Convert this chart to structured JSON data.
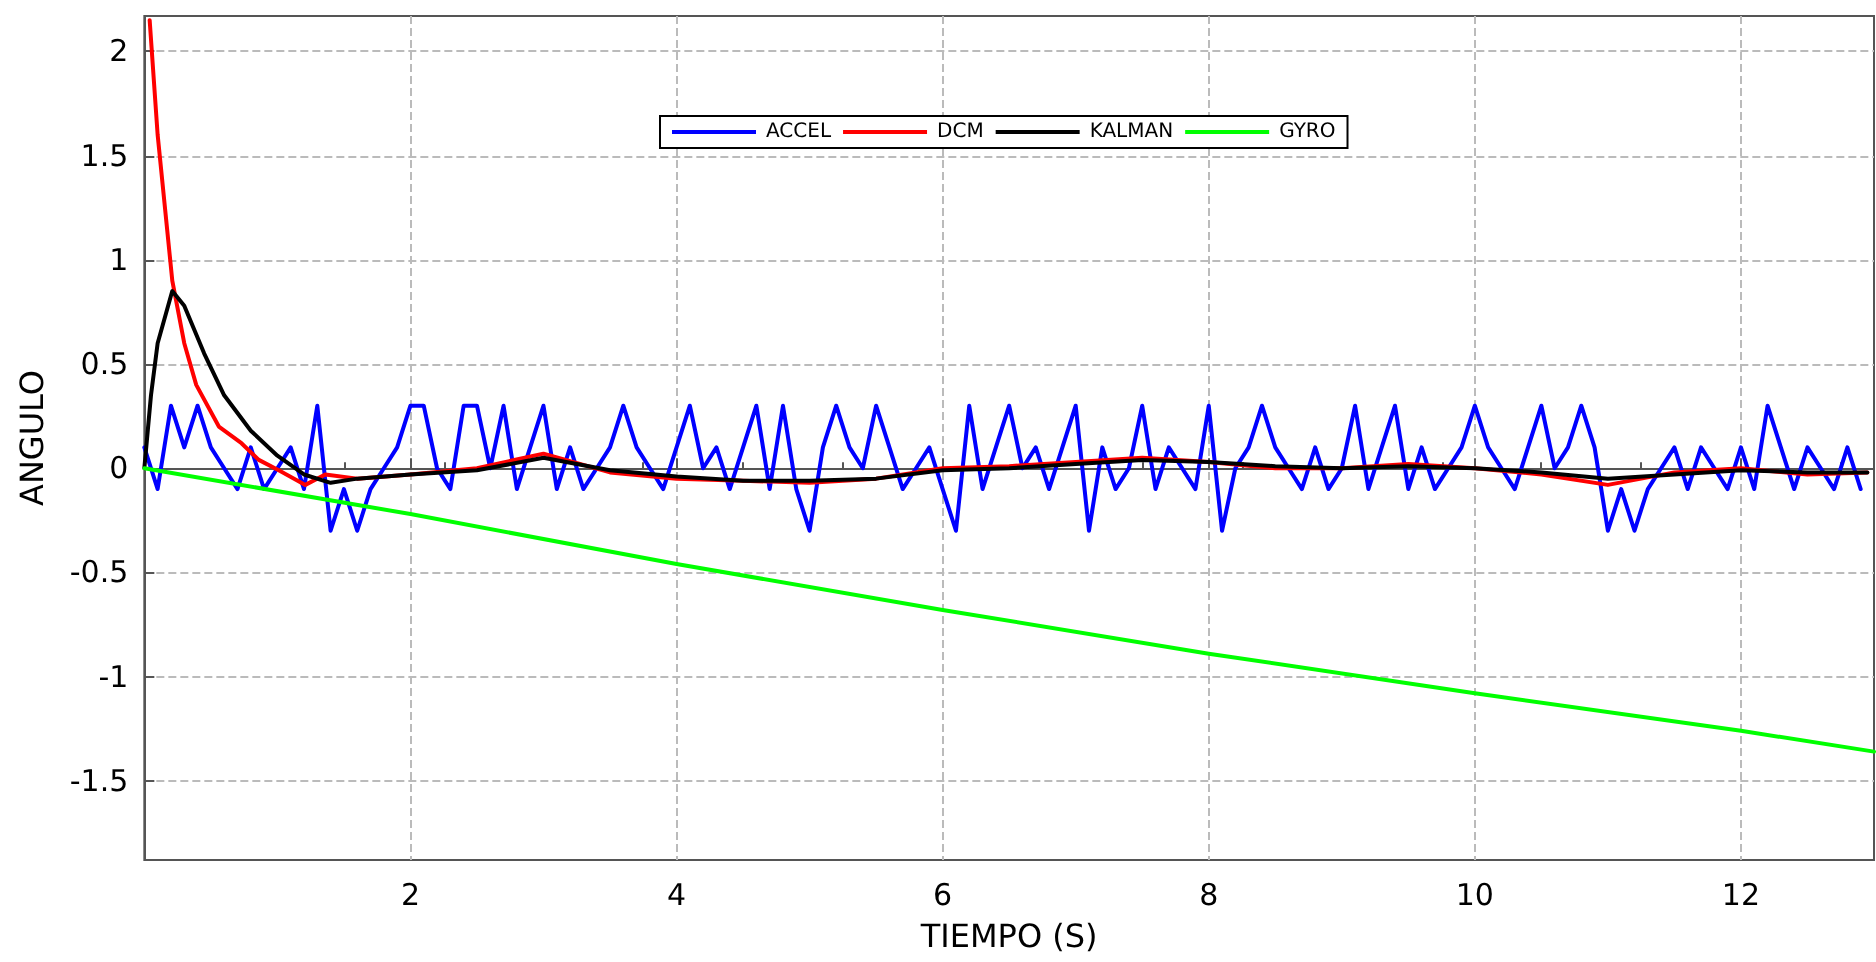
{
  "chart_data": {
    "type": "line",
    "xlabel": "TIEMPO (S)",
    "ylabel": "ANGULO",
    "xlim": [
      0,
      13
    ],
    "ylim": [
      -1.88,
      2.17
    ],
    "xticks": [
      2,
      4,
      6,
      8,
      10,
      12
    ],
    "yticks": [
      -1.5,
      -1,
      -0.5,
      0,
      0.5,
      1,
      1.5,
      2
    ],
    "grid": true,
    "legend": "top",
    "marker": "none",
    "line_style": "solid",
    "series": [
      {
        "name": "ACCEL",
        "color": "#0000ff",
        "x": [
          0,
          0.1,
          0.2,
          0.3,
          0.4,
          0.5,
          0.6,
          0.7,
          0.8,
          0.9,
          1,
          1.1,
          1.2,
          1.3,
          1.4,
          1.5,
          1.6,
          1.7,
          1.8,
          1.9,
          2,
          2.1,
          2.2,
          2.3,
          2.4,
          2.5,
          2.6,
          2.7,
          2.8,
          2.9,
          3,
          3.1,
          3.2,
          3.3,
          3.4,
          3.5,
          3.6,
          3.7,
          3.8,
          3.9,
          4,
          4.1,
          4.2,
          4.3,
          4.4,
          4.5,
          4.6,
          4.7,
          4.8,
          4.9,
          5,
          5.1,
          5.2,
          5.3,
          5.4,
          5.5,
          5.6,
          5.7,
          5.8,
          5.9,
          6,
          6.1,
          6.2,
          6.3,
          6.4,
          6.5,
          6.6,
          6.7,
          6.8,
          6.9,
          7,
          7.1,
          7.2,
          7.3,
          7.4,
          7.5,
          7.6,
          7.7,
          7.8,
          7.9,
          8,
          8.1,
          8.2,
          8.3,
          8.4,
          8.5,
          8.6,
          8.7,
          8.8,
          8.9,
          9,
          9.1,
          9.2,
          9.3,
          9.4,
          9.5,
          9.6,
          9.7,
          9.8,
          9.9,
          10,
          10.1,
          10.2,
          10.3,
          10.4,
          10.5,
          10.6,
          10.7,
          10.8,
          10.9,
          11,
          11.1,
          11.2,
          11.3,
          11.4,
          11.5,
          11.6,
          11.7,
          11.8,
          11.9,
          12,
          12.1,
          12.2,
          12.3,
          12.4,
          12.5,
          12.6,
          12.7,
          12.8,
          12.9
        ],
        "values": [
          0.1,
          -0.1,
          0.3,
          0.1,
          0.3,
          0.1,
          0,
          -0.1,
          0.1,
          -0.1,
          0,
          0.1,
          -0.1,
          0.3,
          -0.3,
          -0.1,
          -0.3,
          -0.1,
          0,
          0.1,
          0.3,
          0.3,
          0,
          -0.1,
          0.3,
          0.3,
          0,
          0.3,
          -0.1,
          0.1,
          0.3,
          -0.1,
          0.1,
          -0.1,
          0,
          0.1,
          0.3,
          0.1,
          0,
          -0.1,
          0.1,
          0.3,
          0,
          0.1,
          -0.1,
          0.1,
          0.3,
          -0.1,
          0.3,
          -0.1,
          -0.3,
          0.1,
          0.3,
          0.1,
          0,
          0.3,
          0.1,
          -0.1,
          0,
          0.1,
          -0.1,
          -0.3,
          0.3,
          -0.1,
          0.1,
          0.3,
          0,
          0.1,
          -0.1,
          0.1,
          0.3,
          -0.3,
          0.1,
          -0.1,
          0,
          0.3,
          -0.1,
          0.1,
          0,
          -0.1,
          0.3,
          -0.3,
          0,
          0.1,
          0.3,
          0.1,
          0,
          -0.1,
          0.1,
          -0.1,
          0,
          0.3,
          -0.1,
          0.1,
          0.3,
          -0.1,
          0.1,
          -0.1,
          0,
          0.1,
          0.3,
          0.1,
          0,
          -0.1,
          0.1,
          0.3,
          0,
          0.1,
          0.3,
          0.1,
          -0.3,
          -0.1,
          -0.3,
          -0.1,
          0,
          0.1,
          -0.1,
          0.1,
          0,
          -0.1,
          0.1,
          -0.1,
          0.3,
          0.1,
          -0.1,
          0.1,
          0,
          -0.1,
          0.1,
          -0.1
        ]
      },
      {
        "name": "DCM",
        "color": "#ff0000",
        "x": [
          0.04,
          0.1,
          0.21,
          0.3,
          0.39,
          0.56,
          0.73,
          0.86,
          1.01,
          1.21,
          1.36,
          1.6,
          2,
          2.5,
          3,
          3.5,
          4,
          4.5,
          5,
          5.5,
          6,
          6.5,
          7,
          7.5,
          8,
          8.5,
          9,
          9.5,
          10,
          10.5,
          11,
          11.5,
          12,
          12.5,
          12.95
        ],
        "values": [
          2.15,
          1.6,
          0.9,
          0.6,
          0.4,
          0.2,
          0.12,
          0.04,
          -0.01,
          -0.08,
          -0.03,
          -0.05,
          -0.03,
          0,
          0.07,
          -0.02,
          -0.05,
          -0.06,
          -0.07,
          -0.05,
          0,
          0.01,
          0.03,
          0.05,
          0.03,
          0,
          0,
          0.02,
          0,
          -0.03,
          -0.08,
          -0.02,
          0,
          -0.03,
          -0.02
        ]
      },
      {
        "name": "KALMAN",
        "color": "#000000",
        "x": [
          0,
          0.05,
          0.1,
          0.21,
          0.3,
          0.45,
          0.6,
          0.8,
          1,
          1.2,
          1.4,
          1.6,
          2,
          2.5,
          3,
          3.5,
          4,
          4.5,
          5,
          5.5,
          6,
          6.5,
          7,
          7.5,
          8,
          8.5,
          9,
          9.5,
          10,
          10.5,
          11,
          11.5,
          12,
          12.5,
          12.95
        ],
        "values": [
          0,
          0.35,
          0.6,
          0.85,
          0.78,
          0.55,
          0.35,
          0.18,
          0.06,
          -0.03,
          -0.07,
          -0.05,
          -0.03,
          -0.01,
          0.05,
          -0.01,
          -0.04,
          -0.06,
          -0.06,
          -0.05,
          -0.01,
          0,
          0.02,
          0.04,
          0.03,
          0.01,
          0,
          0.01,
          0,
          -0.02,
          -0.05,
          -0.03,
          -0.01,
          -0.02,
          -0.02
        ]
      },
      {
        "name": "GYRO",
        "color": "#00ff00",
        "x": [
          0,
          2,
          4,
          6,
          8,
          10,
          12,
          13
        ],
        "values": [
          0,
          -0.22,
          -0.46,
          -0.68,
          -0.89,
          -1.08,
          -1.26,
          -1.36
        ]
      }
    ]
  }
}
